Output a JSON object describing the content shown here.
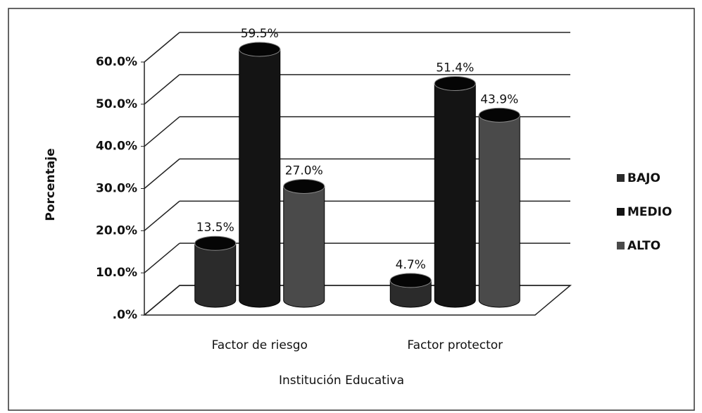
{
  "chart_data": {
    "type": "bar3d",
    "x_label": "Institución Educativa",
    "y_label": "Porcentaje",
    "categories": [
      "Factor de riesgo",
      "Factor protector"
    ],
    "series": [
      {
        "name": "BAJO",
        "color": "#2b2b2b",
        "values": [
          13.5,
          4.7
        ],
        "value_labels": [
          "13.5%",
          "4.7%"
        ]
      },
      {
        "name": "MEDIO",
        "color": "#141414",
        "values": [
          59.5,
          51.4
        ],
        "value_labels": [
          "59.5%",
          "51.4%"
        ]
      },
      {
        "name": "ALTO",
        "color": "#4a4a4a",
        "values": [
          27.0,
          43.9
        ],
        "value_labels": [
          "27.0%",
          "43.9%"
        ]
      }
    ],
    "ylim": [
      0,
      60
    ],
    "yticks": [
      {
        "value": 0,
        "label": ".0%"
      },
      {
        "value": 10,
        "label": "10.0%"
      },
      {
        "value": 20,
        "label": "20.0%"
      },
      {
        "value": 30,
        "label": "30.0%"
      },
      {
        "value": 40,
        "label": "40.0%"
      },
      {
        "value": 50,
        "label": "50.0%"
      },
      {
        "value": 60,
        "label": "60.0%"
      }
    ],
    "grid": true,
    "legend": "right"
  }
}
